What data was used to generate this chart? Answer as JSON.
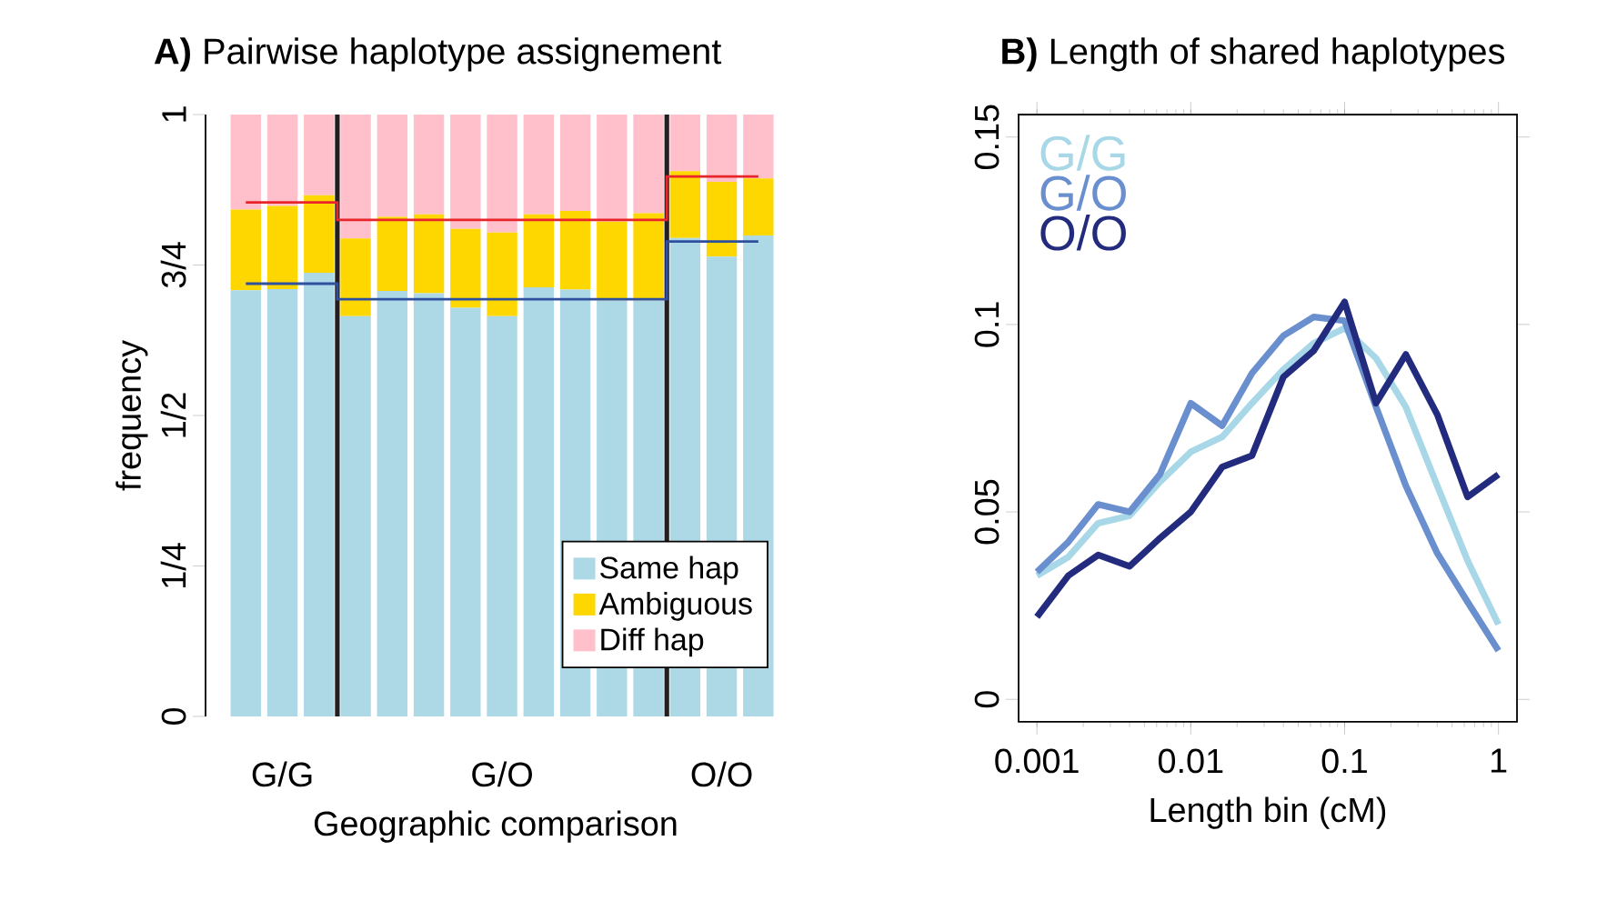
{
  "chart_data": [
    {
      "type": "bar",
      "stacked": true,
      "title": "**A)** Pairwise haplotype assignement",
      "xlabel": "Geographic comparison",
      "ylabel": "frequency",
      "categories": [
        null,
        "G/G",
        null,
        null,
        null,
        null,
        null,
        "G/O",
        null,
        null,
        null,
        null,
        null,
        "O/O",
        null
      ],
      "series": [
        {
          "name": "Same hap",
          "color": "#add8e6",
          "values": [
            0.708,
            0.71,
            0.737,
            0.665,
            0.707,
            0.703,
            0.679,
            0.665,
            0.713,
            0.709,
            0.691,
            0.691,
            0.795,
            0.764,
            0.799
          ]
        },
        {
          "name": "Ambiguous",
          "color": "#ffd700",
          "values": [
            0.134,
            0.138,
            0.129,
            0.129,
            0.123,
            0.131,
            0.131,
            0.139,
            0.121,
            0.131,
            0.131,
            0.145,
            0.111,
            0.124,
            0.095
          ]
        },
        {
          "name": "Diff hap",
          "color": "#ffc0cb",
          "values": [
            0.158,
            0.152,
            0.134,
            0.206,
            0.17,
            0.166,
            0.19,
            0.196,
            0.166,
            0.16,
            0.178,
            0.164,
            0.094,
            0.112,
            0.106
          ]
        },
        {
          "type": "step",
          "color": "#e8252a",
          "values": [
            0.854,
            0.854,
            0.854,
            0.825,
            0.825,
            0.825,
            0.825,
            0.825,
            0.825,
            0.825,
            0.825,
            0.825,
            0.897,
            0.897,
            0.897
          ]
        },
        {
          "type": "step",
          "color": "#2f4f9f",
          "values": [
            0.719,
            0.719,
            0.719,
            0.693,
            0.693,
            0.693,
            0.693,
            0.693,
            0.693,
            0.693,
            0.693,
            0.693,
            0.789,
            0.789,
            0.789
          ]
        }
      ],
      "ylim": [
        0,
        1
      ],
      "yticks": [
        0,
        {
          "value": 0.25,
          "label": "1/4"
        },
        {
          "value": 0.5,
          "label": "1/2"
        },
        {
          "value": 0.75,
          "label": "3/4"
        },
        1
      ],
      "legend": "bottom right"
    },
    {
      "type": "line",
      "title": "**B)** Length of shared haplotypes",
      "xlabel": "Length bin (cM)",
      "log": "x",
      "x": [
        0.001,
        0.0016,
        0.0025,
        0.004,
        0.0063,
        0.01,
        0.016,
        0.025,
        0.04,
        0.063,
        0.1,
        0.16,
        0.25,
        0.4,
        0.63,
        1
      ],
      "series": [
        {
          "name": "G/G",
          "color": "#a8d8e8",
          "values": [
            0.033,
            0.038,
            0.047,
            0.049,
            0.058,
            0.066,
            0.07,
            0.079,
            0.088,
            0.095,
            0.099,
            0.091,
            0.078,
            0.057,
            0.037,
            0.02
          ]
        },
        {
          "name": "G/O",
          "color": "#6a8fcf",
          "values": [
            0.034,
            0.042,
            0.052,
            0.05,
            0.06,
            0.079,
            0.073,
            0.087,
            0.097,
            0.102,
            0.101,
            0.078,
            0.057,
            0.039,
            0.026,
            0.013
          ]
        },
        {
          "name": "O/O",
          "color": "#232b7e",
          "values": [
            0.022,
            0.033,
            0.0385,
            0.0355,
            0.043,
            0.05,
            0.062,
            0.065,
            0.086,
            0.093,
            0.106,
            0.079,
            0.092,
            0.076,
            0.054,
            0.06
          ]
        }
      ],
      "xlim": [
        0.00076,
        1.32
      ],
      "ylim": [
        -0.006,
        0.156
      ],
      "xticks": [
        0.001,
        0.01,
        0.1,
        1
      ],
      "yticks": [
        0,
        0.05,
        0.1,
        0.15
      ],
      "legend": "top left"
    }
  ]
}
